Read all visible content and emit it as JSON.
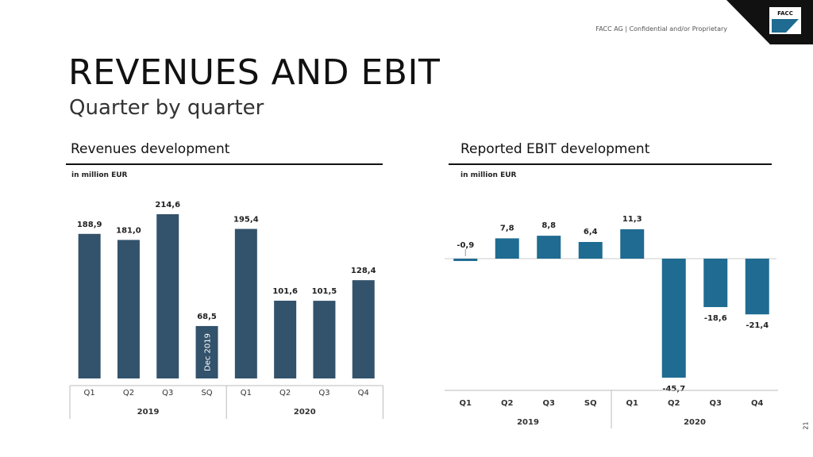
{
  "header": {
    "confidential_note": "FACC AG | Confidential and/or Proprietary",
    "logo_text": "FACC"
  },
  "title": "REVENUES AND EBIT",
  "subtitle": "Quarter by quarter",
  "page_number": "21",
  "colors": {
    "revenue_bar": "#33526b",
    "ebit_bar": "#1f6b91",
    "logo_bg": "#111111",
    "axis_line": "#bbbbbb"
  },
  "revenues": {
    "section_title": "Revenues development",
    "unit_label": "in million EUR"
  },
  "ebit": {
    "section_title": "Reported EBIT development",
    "unit_label": "in million EUR"
  },
  "chart_data": [
    {
      "type": "bar",
      "categories": [
        "Q1",
        "Q2",
        "Q3",
        "SQ",
        "Q1",
        "Q2",
        "Q3",
        "Q4"
      ],
      "values": [
        188.9,
        181.0,
        214.6,
        68.5,
        195.4,
        101.6,
        101.5,
        128.4
      ],
      "data_labels": [
        "188,9",
        "181,0",
        "214,6",
        "68,5",
        "195,4",
        "101,6",
        "101,5",
        "128,4"
      ],
      "groups": [
        {
          "label": "2019",
          "count": 4
        },
        {
          "label": "2020",
          "count": 4
        }
      ],
      "bar_annotations": [
        {
          "index": 3,
          "text": "Dec 2019"
        }
      ],
      "ylim": [
        0,
        230
      ],
      "grid": false
    },
    {
      "type": "bar",
      "categories": [
        "Q1",
        "Q2",
        "Q3",
        "SQ",
        "Q1",
        "Q2",
        "Q3",
        "Q4"
      ],
      "values": [
        -0.9,
        7.8,
        8.8,
        6.4,
        11.3,
        -45.7,
        -18.6,
        -21.4
      ],
      "data_labels": [
        "-0,9",
        "7,8",
        "8,8",
        "6,4",
        "11,3",
        "-45,7",
        "-18,6",
        "-21,4"
      ],
      "groups": [
        {
          "label": "2019",
          "count": 4
        },
        {
          "label": "2020",
          "count": 4
        }
      ],
      "ylim": [
        -50,
        15
      ],
      "grid": false
    }
  ]
}
